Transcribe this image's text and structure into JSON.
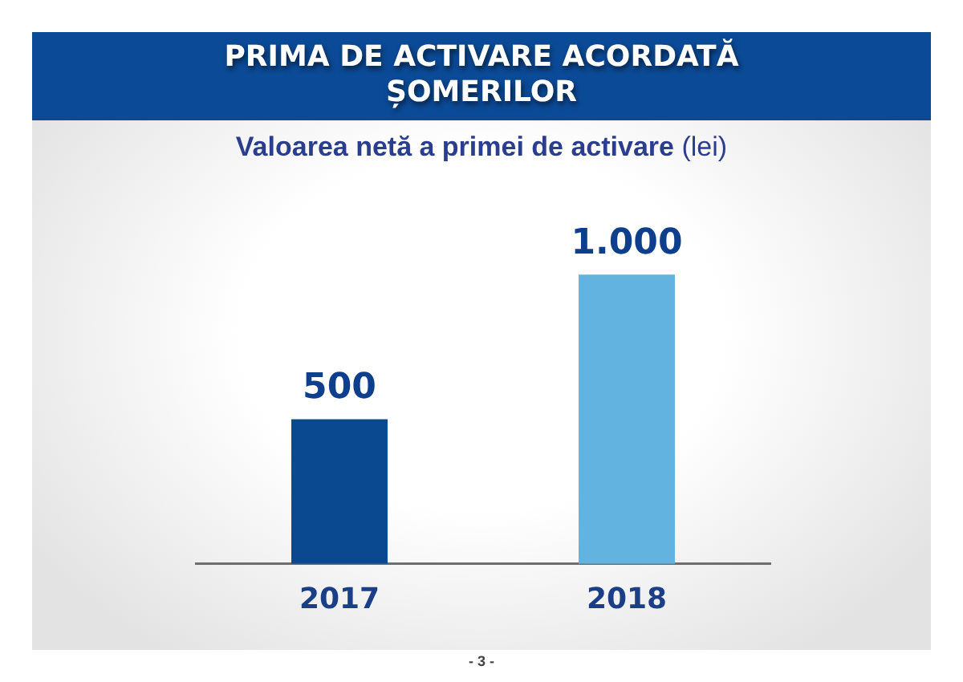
{
  "chart_data": {
    "type": "bar",
    "title": "PRIMA DE ACTIVARE ACORDATĂ ȘOMERILOR",
    "subtitle": "Valoarea netă a primei de activare (lei)",
    "categories": [
      "2017",
      "2018"
    ],
    "values": [
      500,
      1000
    ],
    "colors": [
      "#0a4890",
      "#62b3e0"
    ],
    "value_labels": [
      "500",
      "1.000"
    ],
    "annotations": [
      "- 3 -"
    ]
  }
}
